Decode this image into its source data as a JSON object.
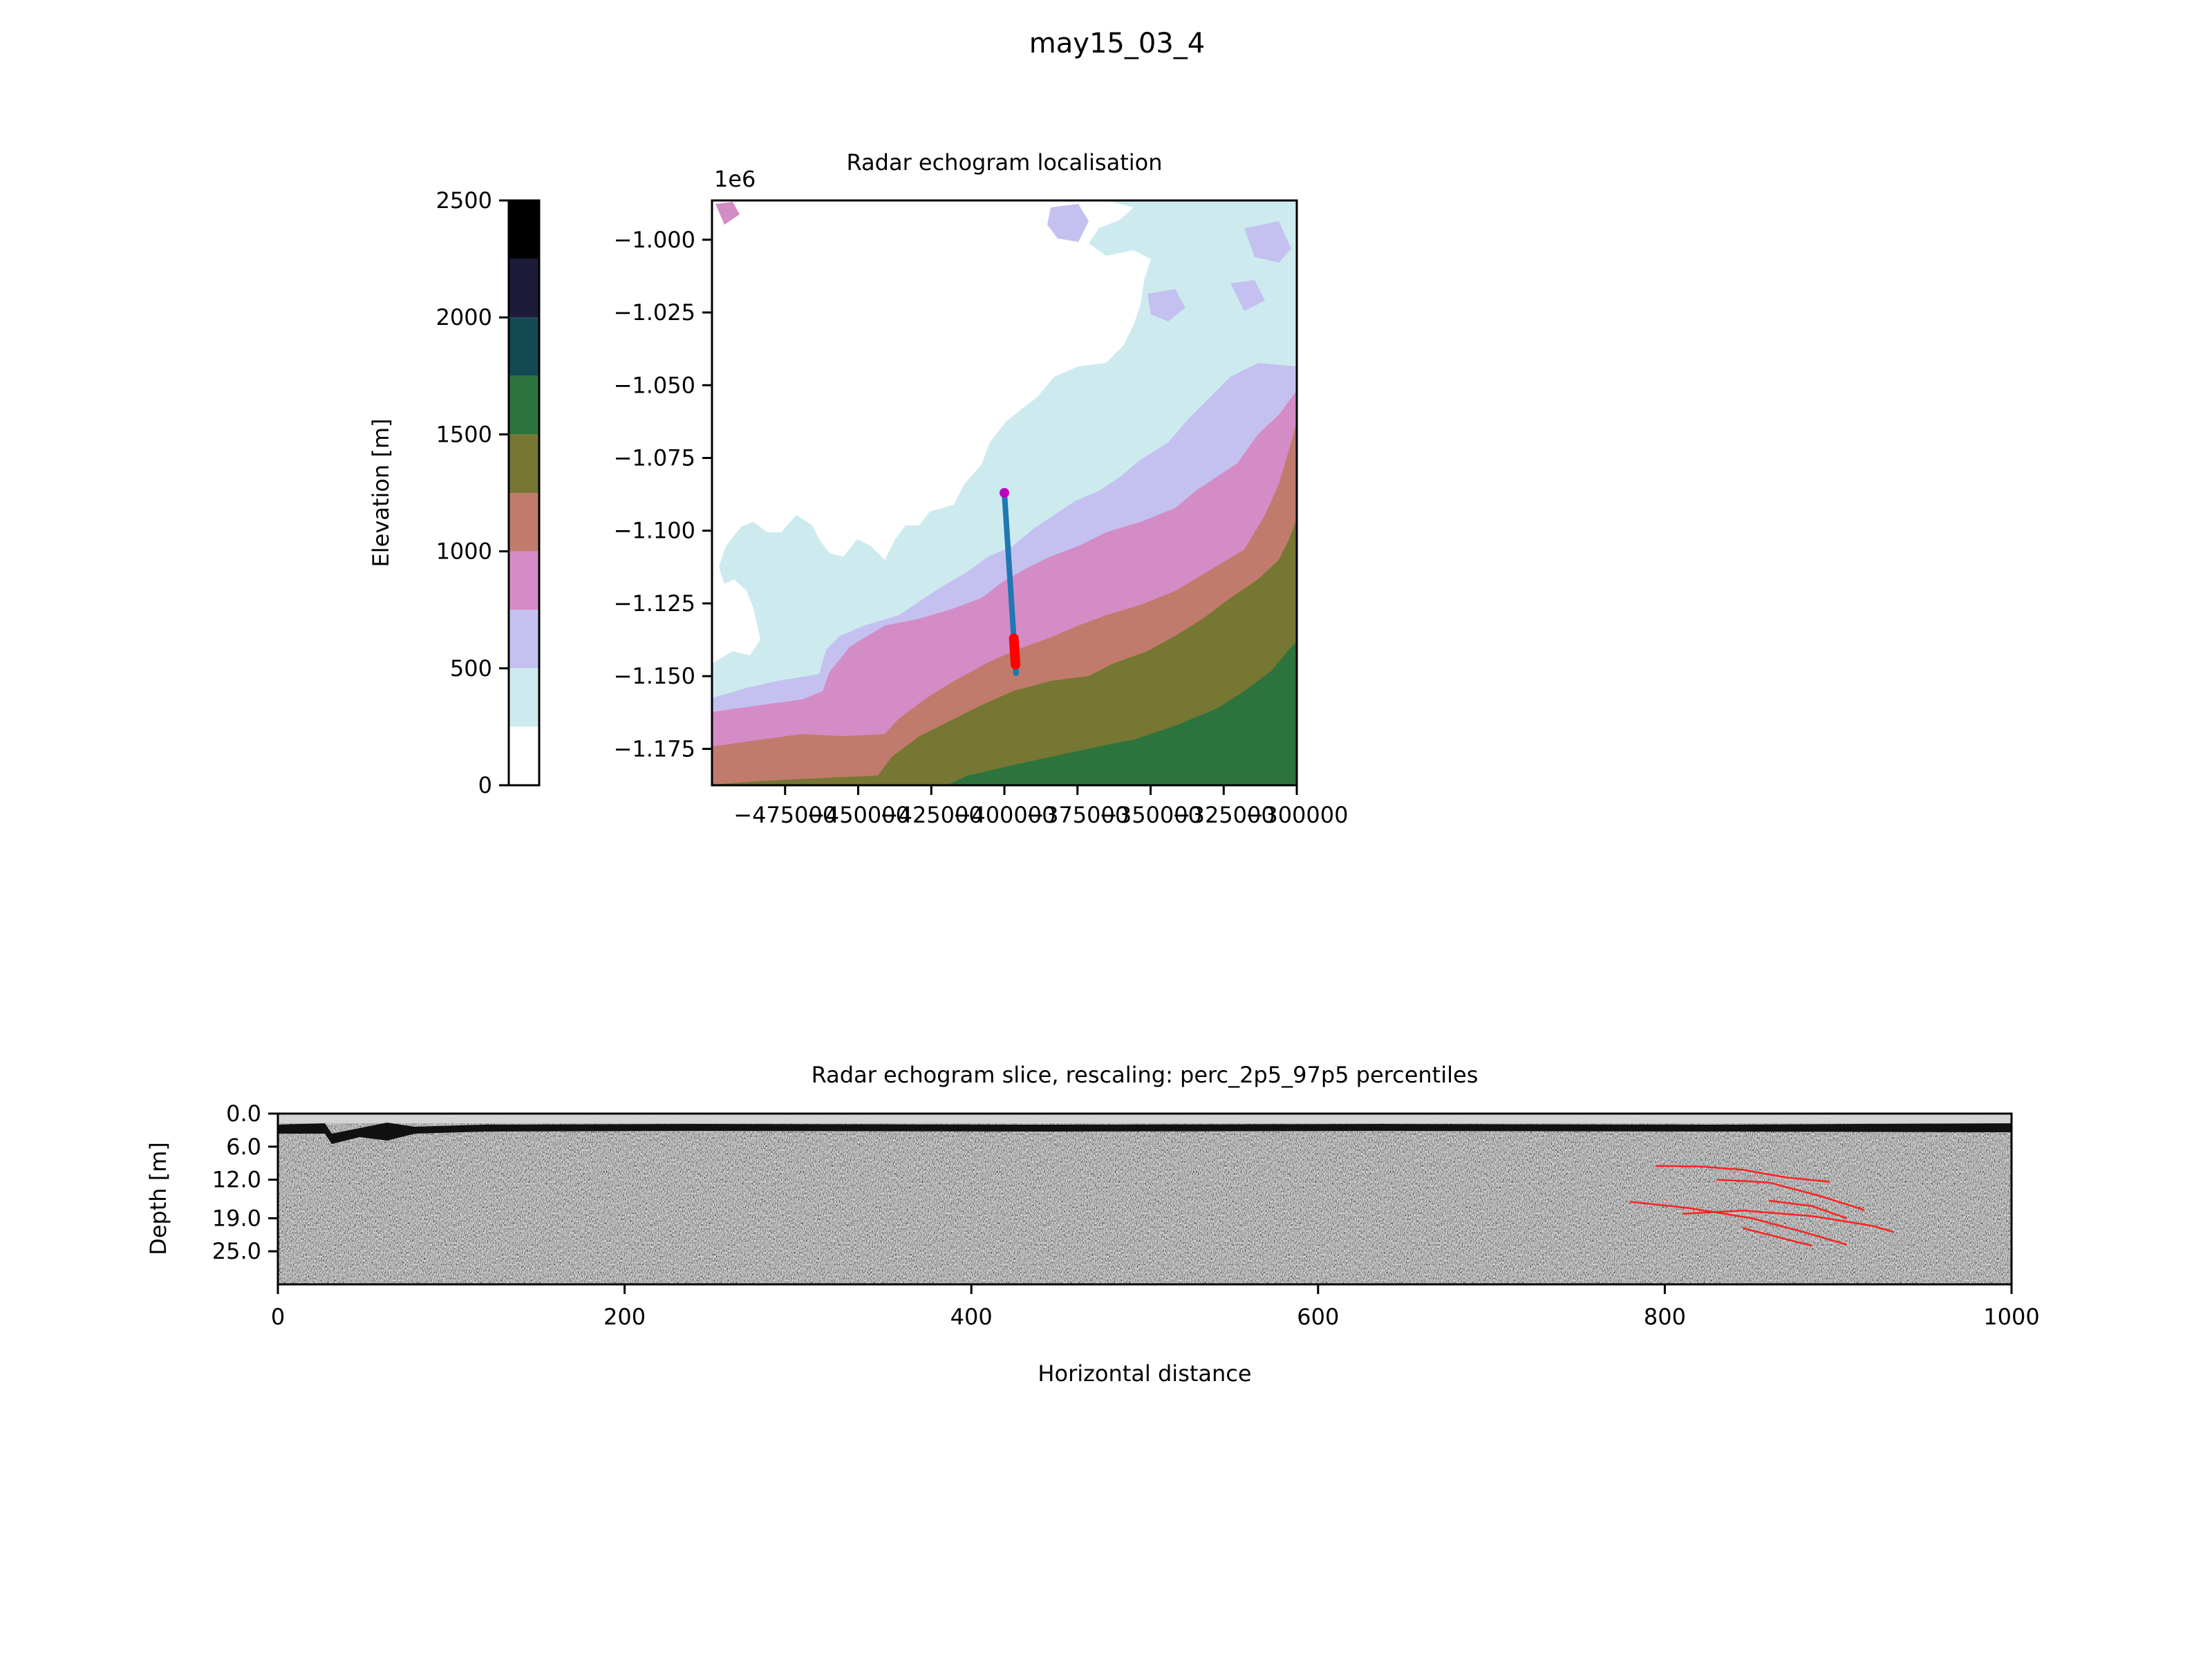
{
  "figure": {
    "title": "may15_03_4"
  },
  "chart_data": [
    {
      "type": "heatmap",
      "subtype": "colorbar",
      "label": "Elevation [m]",
      "ticks": [
        "0",
        "500",
        "1000",
        "1500",
        "2000",
        "2500"
      ],
      "range": [
        0,
        2500
      ],
      "bins": [
        {
          "from": 0,
          "to": 250,
          "color": "#ffffff"
        },
        {
          "from": 250,
          "to": 500,
          "color": "#cdebee"
        },
        {
          "from": 500,
          "to": 750,
          "color": "#c4c1f1"
        },
        {
          "from": 750,
          "to": 1000,
          "color": "#d48cc6"
        },
        {
          "from": 1000,
          "to": 1250,
          "color": "#c07b6c"
        },
        {
          "from": 1250,
          "to": 1500,
          "color": "#757733"
        },
        {
          "from": 1500,
          "to": 1750,
          "color": "#2d733e"
        },
        {
          "from": 1750,
          "to": 2000,
          "color": "#134952"
        },
        {
          "from": 2000,
          "to": 2250,
          "color": "#1d1b3a"
        },
        {
          "from": 2250,
          "to": 2500,
          "color": "#000000"
        }
      ]
    },
    {
      "type": "heatmap",
      "subtype": "map",
      "title": "Radar echogram localisation",
      "offset_text": "1e6",
      "x_ticks": [
        "−475000",
        "−450000",
        "−425000",
        "−400000",
        "−375000",
        "−350000",
        "−325000",
        "−300000"
      ],
      "x_tick_values": [
        -475000,
        -450000,
        -425000,
        -400000,
        -375000,
        -350000,
        -325000,
        -300000
      ],
      "xlim": [
        -500000,
        -300000
      ],
      "y_ticks": [
        "−1.000",
        "−1.025",
        "−1.050",
        "−1.075",
        "−1.100",
        "−1.125",
        "−1.150",
        "−1.175"
      ],
      "y_tick_values": [
        -1.0,
        -1.025,
        -1.05,
        -1.075,
        -1.1,
        -1.125,
        -1.15,
        -1.175
      ],
      "ylim": [
        -1.1875,
        -0.9865
      ],
      "track": {
        "color": "#1f77b4",
        "start": [
          -400000,
          -1.087
        ],
        "end": [
          -396000,
          -1.149
        ],
        "start_marker_color": "#c000c0",
        "highlight": {
          "color": "#ff0000",
          "y_from": -1.137,
          "y_to": -1.146
        }
      },
      "contour_fill_bins": [
        "#cdebee",
        "#c4c1f1",
        "#d48cc6",
        "#c07b6c",
        "#757733",
        "#2d733e"
      ]
    },
    {
      "type": "heatmap",
      "subtype": "echogram",
      "title": "Radar echogram slice, rescaling: perc_2p5_97p5 percentiles",
      "xlabel": "Horizontal distance",
      "ylabel": "Depth [m]",
      "x_ticks": [
        "0",
        "200",
        "400",
        "600",
        "800",
        "1000"
      ],
      "x_tick_values": [
        0,
        200,
        400,
        600,
        800,
        1000
      ],
      "xlim": [
        0,
        1000
      ],
      "y_ticks": [
        "0.0",
        "6.0",
        "12.0",
        "19.0",
        "25.0"
      ],
      "y_tick_values": [
        0,
        6,
        12,
        19,
        25
      ],
      "ylim": [
        0,
        31
      ],
      "colormap": "gray",
      "picked_layers_color": "#ff2020",
      "picked_layers": [
        [
          [
            795,
            9.5
          ],
          [
            820,
            9.6
          ],
          [
            845,
            10.2
          ],
          [
            870,
            11.6
          ],
          [
            895,
            12.4
          ]
        ],
        [
          [
            830,
            12.0
          ],
          [
            860,
            12.5
          ],
          [
            890,
            15.0
          ],
          [
            915,
            17.5
          ]
        ],
        [
          [
            780,
            16.0
          ],
          [
            815,
            17.2
          ],
          [
            850,
            19.0
          ],
          [
            880,
            21.5
          ],
          [
            905,
            23.8
          ]
        ],
        [
          [
            810,
            18.2
          ],
          [
            845,
            17.6
          ],
          [
            885,
            18.6
          ],
          [
            920,
            20.4
          ],
          [
            932,
            21.5
          ]
        ],
        [
          [
            845,
            20.8
          ],
          [
            870,
            22.8
          ],
          [
            885,
            24.0
          ]
        ],
        [
          [
            860,
            15.8
          ],
          [
            885,
            16.8
          ],
          [
            905,
            19.0
          ]
        ]
      ]
    }
  ]
}
